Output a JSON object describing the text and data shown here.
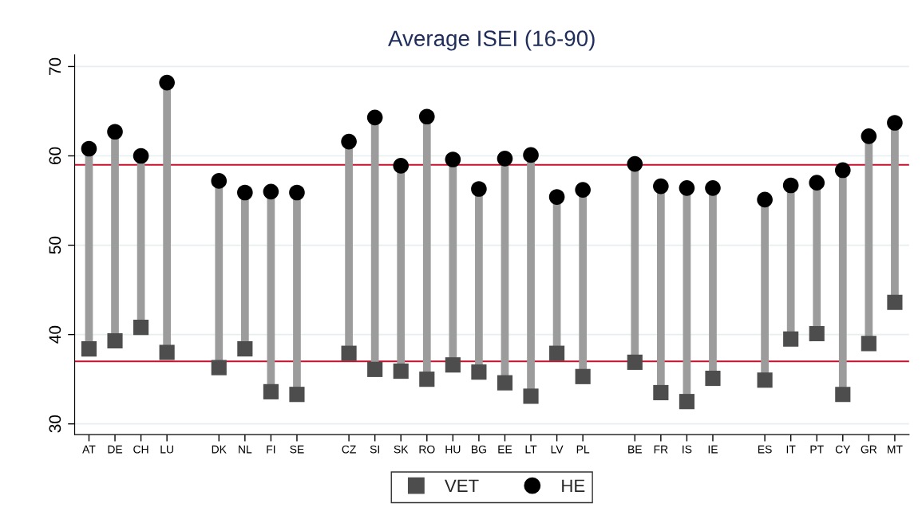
{
  "chart_data": {
    "type": "scatter",
    "title": "Average ISEI (16-90)",
    "categories": [
      "AT",
      "DE",
      "CH",
      "LU",
      null,
      "DK",
      "NL",
      "FI",
      "SE",
      null,
      "CZ",
      "SI",
      "SK",
      "RO",
      "HU",
      "BG",
      "EE",
      "LT",
      "LV",
      "PL",
      null,
      "BE",
      "FR",
      "IS",
      "IE",
      null,
      "ES",
      "IT",
      "PT",
      "CY",
      "GR",
      "MT"
    ],
    "series": [
      {
        "name": "VET",
        "color": "#4d4d4d",
        "marker": "square",
        "values": [
          38.4,
          39.3,
          40.8,
          38.0,
          null,
          36.3,
          38.4,
          33.6,
          33.3,
          null,
          37.9,
          36.1,
          35.9,
          35.0,
          36.6,
          35.8,
          34.6,
          33.1,
          37.9,
          35.3,
          null,
          36.9,
          33.5,
          32.5,
          35.1,
          null,
          34.9,
          39.5,
          40.1,
          33.3,
          39.0,
          43.6
        ]
      },
      {
        "name": "HE",
        "color": "#000000",
        "marker": "circle",
        "values": [
          60.8,
          62.7,
          60.0,
          68.2,
          null,
          57.2,
          55.9,
          56.0,
          55.9,
          null,
          61.6,
          64.3,
          58.9,
          64.4,
          59.6,
          56.3,
          59.7,
          60.1,
          55.4,
          56.2,
          null,
          59.1,
          56.6,
          56.4,
          56.4,
          null,
          55.1,
          56.7,
          57.0,
          58.4,
          62.2,
          63.7
        ]
      }
    ],
    "ylim": [
      28.8,
      71.3
    ],
    "yticks": [
      30,
      40,
      50,
      60,
      70
    ],
    "ref_lines": [
      {
        "axis": "y",
        "value": 59.0,
        "color": "#c8102e"
      },
      {
        "axis": "y",
        "value": 37.0,
        "color": "#c8102e"
      }
    ],
    "grid": "y",
    "legend": "bottom"
  }
}
